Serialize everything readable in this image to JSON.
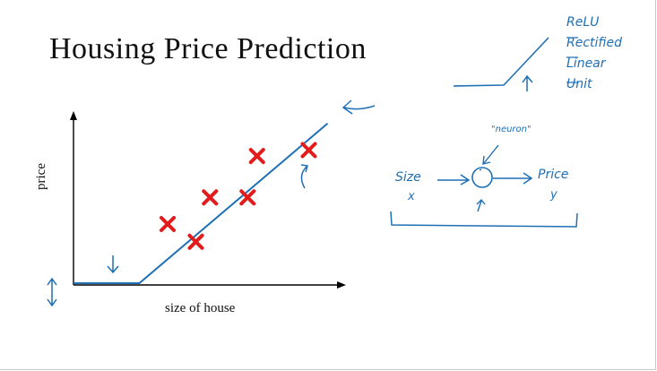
{
  "slide": {
    "title": "Housing Price Prediction"
  },
  "chart_data": {
    "type": "scatter",
    "title": "",
    "xlabel": "size of house",
    "ylabel": "price",
    "marker_color": "#e31b1b",
    "fit_line_color": "#1f6fb5",
    "points": [
      {
        "x": 1.0,
        "y": 1.0
      },
      {
        "x": 1.3,
        "y": 0.7
      },
      {
        "x": 1.45,
        "y": 1.45
      },
      {
        "x": 1.85,
        "y": 1.45
      },
      {
        "x": 1.95,
        "y": 2.15
      },
      {
        "x": 2.5,
        "y": 2.25
      }
    ],
    "fit_line": [
      {
        "x": 0.0,
        "y": 0.0
      },
      {
        "x": 0.7,
        "y": 0.0
      },
      {
        "x": 2.7,
        "y": 2.7
      }
    ],
    "xlim": [
      0,
      2.8
    ],
    "ylim": [
      0,
      2.8
    ]
  },
  "annotations": {
    "relu": [
      "ReLU",
      "Rectified",
      "Linear",
      "Unit"
    ],
    "neuron_label": "\"neuron\"",
    "input_label": "Size",
    "input_var": "x",
    "output_label": "Price",
    "output_var": "y"
  },
  "colors": {
    "ink": "#1f6fb5",
    "axis": "#000000",
    "marker": "#e31b1b"
  }
}
